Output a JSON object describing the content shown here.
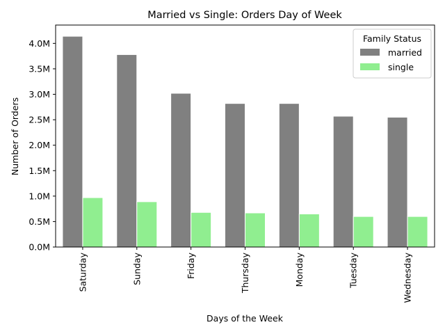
{
  "chart_data": {
    "type": "bar",
    "title": "Married vs Single: Orders Day of Week",
    "xlabel": "Days of the Week",
    "ylabel": "Number of Orders",
    "categories": [
      "Saturday",
      "Sunday",
      "Friday",
      "Thursday",
      "Monday",
      "Tuesday",
      "Wednesday"
    ],
    "series": [
      {
        "name": "married",
        "color": "#808080",
        "values": [
          4140000,
          3780000,
          3020000,
          2820000,
          2820000,
          2570000,
          2550000
        ]
      },
      {
        "name": "single",
        "color": "#90ee90",
        "values": [
          970000,
          890000,
          680000,
          670000,
          650000,
          600000,
          600000
        ]
      }
    ],
    "ylim": [
      0,
      4360000
    ],
    "yticks": [
      0,
      500000,
      1000000,
      1500000,
      2000000,
      2500000,
      3000000,
      3500000,
      4000000
    ],
    "ytick_labels": [
      "0.0M",
      "0.5M",
      "1.0M",
      "1.5M",
      "2.0M",
      "2.5M",
      "3.0M",
      "3.5M",
      "4.0M"
    ],
    "legend": {
      "title": "Family Status",
      "position": "top-right"
    },
    "grid": false
  }
}
